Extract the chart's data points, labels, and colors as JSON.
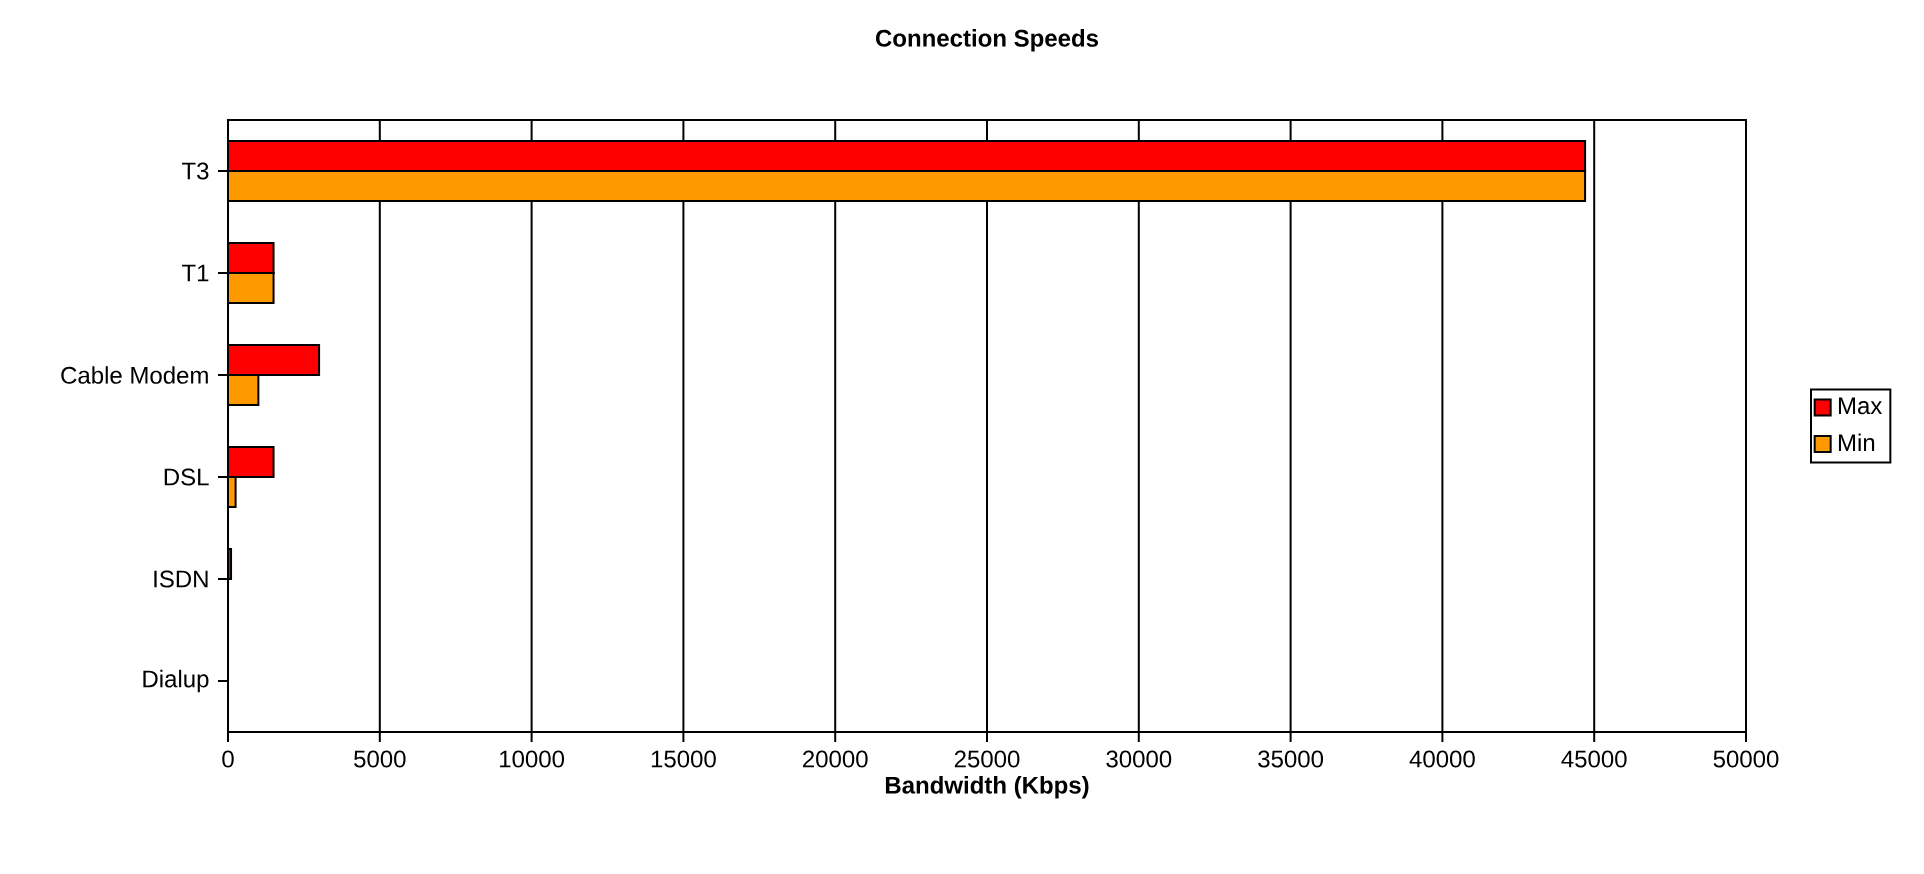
{
  "chart_data": {
    "type": "bar",
    "orientation": "horizontal",
    "title": "Connection Speeds",
    "xlabel": "Bandwidth (Kbps)",
    "categories": [
      "T3",
      "T1",
      "Cable Modem",
      "DSL",
      "ISDN",
      "Dialup"
    ],
    "series": [
      {
        "name": "Max",
        "color": "#ff0000",
        "values": [
          44700,
          1500,
          3000,
          1500,
          100,
          null
        ]
      },
      {
        "name": "Min",
        "color": "#ff9900",
        "values": [
          44700,
          1500,
          1000,
          250,
          null,
          null
        ]
      }
    ],
    "xlim": [
      0,
      50000
    ],
    "xticks": [
      0,
      5000,
      10000,
      15000,
      20000,
      25000,
      30000,
      35000,
      40000,
      45000,
      50000
    ],
    "grid": "x",
    "legend": "right"
  }
}
